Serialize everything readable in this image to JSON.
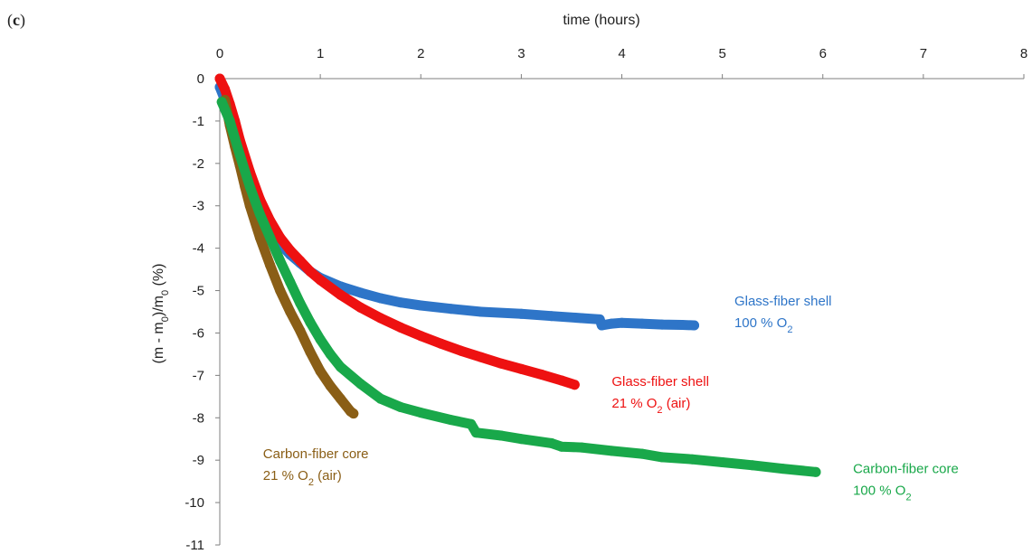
{
  "panel_label": {
    "open": "(",
    "letter": "c",
    "close": ")"
  },
  "chart_data": {
    "type": "scatter",
    "title": "",
    "xlabel": "time (hours)",
    "ylabel": {
      "base1": "(m - m",
      "sub1": "0",
      "mid": ")/m",
      "sub2": "0",
      "tail": " (%)"
    },
    "x_axis_position": "top",
    "xlim": [
      0,
      8
    ],
    "ylim": [
      -11,
      0
    ],
    "xticks": [
      "0",
      "1",
      "2",
      "3",
      "4",
      "5",
      "6",
      "7",
      "8"
    ],
    "yticks": [
      "0",
      "-1",
      "-2",
      "-3",
      "-4",
      "-5",
      "-6",
      "-7",
      "-8",
      "-9",
      "-10",
      "-11"
    ],
    "grid": false,
    "legend": "none; series labelled inline next to each curve",
    "series": [
      {
        "name": "Glass-fiber shell 100 % O2",
        "label_line1": "Glass-fiber shell",
        "label_line2_pre": "100 % O",
        "label_line2_sub": "2",
        "label_line2_post": "",
        "color": "#2e75c8",
        "points": [
          [
            0,
            -0.2
          ],
          [
            0.05,
            -0.5
          ],
          [
            0.1,
            -0.9
          ],
          [
            0.15,
            -1.3
          ],
          [
            0.2,
            -1.75
          ],
          [
            0.3,
            -2.5
          ],
          [
            0.4,
            -3.1
          ],
          [
            0.5,
            -3.55
          ],
          [
            0.6,
            -3.9
          ],
          [
            0.7,
            -4.15
          ],
          [
            0.8,
            -4.35
          ],
          [
            0.9,
            -4.55
          ],
          [
            1.0,
            -4.7
          ],
          [
            1.2,
            -4.9
          ],
          [
            1.4,
            -5.05
          ],
          [
            1.6,
            -5.18
          ],
          [
            1.8,
            -5.28
          ],
          [
            2.0,
            -5.35
          ],
          [
            2.3,
            -5.43
          ],
          [
            2.6,
            -5.5
          ],
          [
            3.0,
            -5.55
          ],
          [
            3.3,
            -5.6
          ],
          [
            3.6,
            -5.65
          ],
          [
            3.78,
            -5.68
          ],
          [
            3.8,
            -5.82
          ],
          [
            3.9,
            -5.78
          ],
          [
            4.0,
            -5.76
          ],
          [
            4.2,
            -5.78
          ],
          [
            4.4,
            -5.8
          ],
          [
            4.6,
            -5.81
          ],
          [
            4.72,
            -5.82
          ]
        ]
      },
      {
        "name": "Glass-fiber shell 21 % O2 (air)",
        "label_line1": "Glass-fiber shell",
        "label_line2_pre": "21 % O",
        "label_line2_sub": "2",
        "label_line2_post": " (air)",
        "color": "#ee1111",
        "points": [
          [
            0,
            0
          ],
          [
            0.05,
            -0.25
          ],
          [
            0.1,
            -0.6
          ],
          [
            0.15,
            -1.0
          ],
          [
            0.2,
            -1.45
          ],
          [
            0.3,
            -2.2
          ],
          [
            0.4,
            -2.85
          ],
          [
            0.5,
            -3.35
          ],
          [
            0.6,
            -3.75
          ],
          [
            0.7,
            -4.05
          ],
          [
            0.8,
            -4.3
          ],
          [
            0.9,
            -4.55
          ],
          [
            1.0,
            -4.75
          ],
          [
            1.2,
            -5.1
          ],
          [
            1.4,
            -5.4
          ],
          [
            1.6,
            -5.65
          ],
          [
            1.8,
            -5.87
          ],
          [
            2.0,
            -6.07
          ],
          [
            2.2,
            -6.25
          ],
          [
            2.4,
            -6.42
          ],
          [
            2.6,
            -6.57
          ],
          [
            2.8,
            -6.72
          ],
          [
            3.0,
            -6.85
          ],
          [
            3.2,
            -6.98
          ],
          [
            3.4,
            -7.12
          ],
          [
            3.53,
            -7.22
          ]
        ]
      },
      {
        "name": "Carbon-fiber core 21 % O2 (air)",
        "label_line1": "Carbon-fiber core",
        "label_line2_pre": "21 % O",
        "label_line2_sub": "2",
        "label_line2_post": " (air)",
        "color": "#8a5e16",
        "points": [
          [
            0.05,
            -0.5
          ],
          [
            0.1,
            -1.1
          ],
          [
            0.15,
            -1.6
          ],
          [
            0.2,
            -2.05
          ],
          [
            0.25,
            -2.55
          ],
          [
            0.3,
            -3.0
          ],
          [
            0.4,
            -3.75
          ],
          [
            0.5,
            -4.4
          ],
          [
            0.6,
            -5.0
          ],
          [
            0.7,
            -5.5
          ],
          [
            0.8,
            -5.95
          ],
          [
            0.9,
            -6.45
          ],
          [
            1.0,
            -6.9
          ],
          [
            1.1,
            -7.25
          ],
          [
            1.2,
            -7.55
          ],
          [
            1.3,
            -7.85
          ],
          [
            1.33,
            -7.9
          ]
        ]
      },
      {
        "name": "Carbon-fiber core 100 % O2",
        "label_line1": "Carbon-fiber core",
        "label_line2_pre": "100 % O",
        "label_line2_sub": "2",
        "label_line2_post": "",
        "color": "#19a84a",
        "points": [
          [
            0.02,
            -0.55
          ],
          [
            0.1,
            -1.0
          ],
          [
            0.2,
            -1.8
          ],
          [
            0.3,
            -2.55
          ],
          [
            0.4,
            -3.2
          ],
          [
            0.5,
            -3.75
          ],
          [
            0.6,
            -4.3
          ],
          [
            0.7,
            -4.8
          ],
          [
            0.8,
            -5.3
          ],
          [
            0.9,
            -5.75
          ],
          [
            1.0,
            -6.15
          ],
          [
            1.1,
            -6.5
          ],
          [
            1.2,
            -6.8
          ],
          [
            1.4,
            -7.2
          ],
          [
            1.6,
            -7.55
          ],
          [
            1.8,
            -7.75
          ],
          [
            2.0,
            -7.88
          ],
          [
            2.3,
            -8.05
          ],
          [
            2.5,
            -8.15
          ],
          [
            2.55,
            -8.35
          ],
          [
            2.8,
            -8.42
          ],
          [
            3.0,
            -8.5
          ],
          [
            3.3,
            -8.6
          ],
          [
            3.4,
            -8.68
          ],
          [
            3.6,
            -8.7
          ],
          [
            3.9,
            -8.78
          ],
          [
            4.2,
            -8.85
          ],
          [
            4.4,
            -8.93
          ],
          [
            4.7,
            -8.98
          ],
          [
            5.0,
            -9.05
          ],
          [
            5.3,
            -9.12
          ],
          [
            5.6,
            -9.2
          ],
          [
            5.93,
            -9.28
          ]
        ]
      }
    ]
  }
}
